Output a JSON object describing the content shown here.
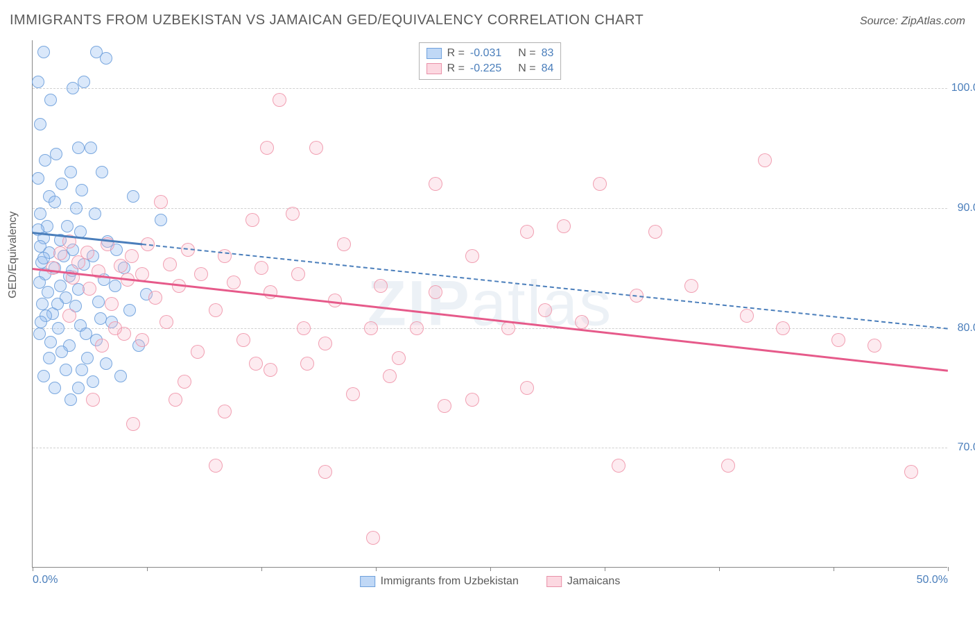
{
  "title": "IMMIGRANTS FROM UZBEKISTAN VS JAMAICAN GED/EQUIVALENCY CORRELATION CHART",
  "source": "Source: ZipAtlas.com",
  "ylabel": "GED/Equivalency",
  "watermark": "ZIPatlas",
  "chart": {
    "type": "scatter",
    "xlim": [
      0,
      50
    ],
    "ylim": [
      60,
      104
    ],
    "xtick_positions": [
      0,
      6.25,
      12.5,
      18.75,
      25,
      31.25,
      37.5,
      43.75,
      50
    ],
    "xtick_labels_shown": {
      "0": "0.0%",
      "50": "50.0%"
    },
    "ytick_positions": [
      70,
      80,
      90,
      100
    ],
    "ytick_labels": {
      "70": "70.0%",
      "80": "80.0%",
      "90": "90.0%",
      "100": "100.0%"
    },
    "grid_color": "#d0d0d0",
    "background_color": "#ffffff",
    "axis_color": "#888888",
    "tick_label_color": "#4a7ebb",
    "series": [
      {
        "name": "Immigrants from Uzbekistan",
        "color_fill": "rgba(150,190,240,0.35)",
        "color_stroke": "#6ea0dc",
        "marker_size": 18,
        "R": "-0.031",
        "N": "83",
        "trend": {
          "x1": 0,
          "y1": 88.0,
          "x2": 50,
          "y2": 80.0,
          "style": "solid_then_dashed",
          "split_x": 6.0,
          "color": "#4a7ebb",
          "width": 2.5
        },
        "points": [
          [
            0.3,
            100.5
          ],
          [
            0.6,
            103
          ],
          [
            3.5,
            103
          ],
          [
            2.2,
            100
          ],
          [
            2.8,
            100.5
          ],
          [
            4.0,
            102.5
          ],
          [
            1.0,
            99
          ],
          [
            0.4,
            97
          ],
          [
            2.5,
            95
          ],
          [
            3.2,
            95
          ],
          [
            1.3,
            94.5
          ],
          [
            0.7,
            94
          ],
          [
            2.1,
            93
          ],
          [
            3.8,
            93
          ],
          [
            0.3,
            92.5
          ],
          [
            1.6,
            92
          ],
          [
            2.7,
            91.5
          ],
          [
            0.9,
            91
          ],
          [
            5.5,
            91
          ],
          [
            1.2,
            90.5
          ],
          [
            2.4,
            90
          ],
          [
            0.4,
            89.5
          ],
          [
            3.4,
            89.5
          ],
          [
            7.0,
            89
          ],
          [
            0.8,
            88.5
          ],
          [
            1.9,
            88.5
          ],
          [
            0.3,
            88.2
          ],
          [
            2.6,
            88
          ],
          [
            0.6,
            87.5
          ],
          [
            1.5,
            87.3
          ],
          [
            4.1,
            87.2
          ],
          [
            0.4,
            86.8
          ],
          [
            2.2,
            86.5
          ],
          [
            0.9,
            86.3
          ],
          [
            1.7,
            86
          ],
          [
            3.3,
            86
          ],
          [
            0.5,
            85.5
          ],
          [
            2.8,
            85.3
          ],
          [
            1.2,
            85
          ],
          [
            5.0,
            85
          ],
          [
            0.7,
            84.5
          ],
          [
            2.0,
            84.3
          ],
          [
            3.9,
            84
          ],
          [
            0.36,
            83.8
          ],
          [
            1.5,
            83.5
          ],
          [
            4.5,
            83.5
          ],
          [
            2.5,
            83.2
          ],
          [
            0.85,
            83
          ],
          [
            6.2,
            82.8
          ],
          [
            1.8,
            82.5
          ],
          [
            3.6,
            82.2
          ],
          [
            0.53,
            82
          ],
          [
            2.35,
            81.8
          ],
          [
            5.3,
            81.5
          ],
          [
            1.1,
            81.2
          ],
          [
            0.71,
            81
          ],
          [
            4.3,
            80.5
          ],
          [
            2.6,
            80.2
          ],
          [
            1.4,
            80
          ],
          [
            0.38,
            79.5
          ],
          [
            3.5,
            79
          ],
          [
            2.0,
            78.5
          ],
          [
            5.8,
            78.5
          ],
          [
            1.6,
            78
          ],
          [
            0.9,
            77.5
          ],
          [
            4.0,
            77
          ],
          [
            2.7,
            76.5
          ],
          [
            3.3,
            75.5
          ],
          [
            1.2,
            75
          ],
          [
            2.1,
            74
          ],
          [
            0.6,
            76
          ],
          [
            1.8,
            76.5
          ],
          [
            3.0,
            77.5
          ],
          [
            2.5,
            75
          ],
          [
            4.8,
            76
          ],
          [
            1.0,
            78.8
          ],
          [
            0.45,
            80.5
          ],
          [
            2.9,
            79.5
          ],
          [
            3.7,
            80.8
          ],
          [
            1.35,
            82
          ],
          [
            2.15,
            84.8
          ],
          [
            0.62,
            85.8
          ],
          [
            4.6,
            86.5
          ]
        ]
      },
      {
        "name": "Jamaicans",
        "color_fill": "rgba(250,190,205,0.30)",
        "color_stroke": "#e890a8",
        "marker_size": 20,
        "R": "-0.225",
        "N": "84",
        "trend": {
          "x1": 0,
          "y1": 85.0,
          "x2": 50,
          "y2": 76.5,
          "style": "solid",
          "color": "#e65a8a",
          "width": 2.5
        },
        "points": [
          [
            13.5,
            99
          ],
          [
            12.8,
            95
          ],
          [
            15.5,
            95
          ],
          [
            40,
            94
          ],
          [
            22,
            92
          ],
          [
            31,
            92
          ],
          [
            7.0,
            90.5
          ],
          [
            12.0,
            89
          ],
          [
            14.2,
            89.5
          ],
          [
            27,
            88
          ],
          [
            34,
            88
          ],
          [
            29,
            88.5
          ],
          [
            2.0,
            87.2
          ],
          [
            4.1,
            87
          ],
          [
            6.3,
            87
          ],
          [
            8.5,
            86.5
          ],
          [
            3.0,
            86.3
          ],
          [
            1.5,
            86.2
          ],
          [
            5.4,
            86
          ],
          [
            10.5,
            86
          ],
          [
            17,
            87
          ],
          [
            24,
            86
          ],
          [
            2.5,
            85.5
          ],
          [
            7.5,
            85.3
          ],
          [
            4.8,
            85.2
          ],
          [
            12.5,
            85
          ],
          [
            1.1,
            85
          ],
          [
            3.6,
            84.7
          ],
          [
            6.0,
            84.5
          ],
          [
            9.2,
            84.5
          ],
          [
            14.5,
            84.5
          ],
          [
            2.2,
            84.2
          ],
          [
            5.2,
            84
          ],
          [
            11.0,
            83.8
          ],
          [
            19,
            83.5
          ],
          [
            8.0,
            83.5
          ],
          [
            3.1,
            83.3
          ],
          [
            36,
            83.5
          ],
          [
            13.0,
            83
          ],
          [
            22,
            83
          ],
          [
            6.7,
            82.5
          ],
          [
            16.5,
            82.3
          ],
          [
            4.3,
            82
          ],
          [
            10.0,
            81.5
          ],
          [
            28,
            81.5
          ],
          [
            39,
            81
          ],
          [
            33,
            82.7
          ],
          [
            2.0,
            81
          ],
          [
            7.3,
            80.5
          ],
          [
            14.8,
            80
          ],
          [
            18.5,
            80
          ],
          [
            21,
            80
          ],
          [
            26,
            80
          ],
          [
            5.0,
            79.5
          ],
          [
            11.5,
            79
          ],
          [
            16.0,
            78.7
          ],
          [
            9.0,
            78
          ],
          [
            20,
            77.5
          ],
          [
            15.0,
            77
          ],
          [
            13.0,
            76.5
          ],
          [
            19.5,
            76
          ],
          [
            27,
            75
          ],
          [
            7.8,
            74
          ],
          [
            30,
            80.5
          ],
          [
            24,
            74
          ],
          [
            22.5,
            73.5
          ],
          [
            4.5,
            80
          ],
          [
            6.0,
            79
          ],
          [
            12.2,
            77
          ],
          [
            8.3,
            75.5
          ],
          [
            3.8,
            78.5
          ],
          [
            17.5,
            74.5
          ],
          [
            10.5,
            73
          ],
          [
            5.5,
            72
          ],
          [
            10.0,
            68.5
          ],
          [
            16.0,
            68
          ],
          [
            48,
            68
          ],
          [
            38,
            68.5
          ],
          [
            32,
            68.5
          ],
          [
            41,
            80
          ],
          [
            44,
            79
          ],
          [
            46,
            78.5
          ],
          [
            18.6,
            62.5
          ],
          [
            3.3,
            74
          ]
        ]
      }
    ],
    "legend_top": {
      "border_color": "#b0b0b0",
      "rows": [
        {
          "swatch": "blue",
          "R_label": "R =",
          "R_val": "-0.031",
          "N_label": "N =",
          "N_val": "83"
        },
        {
          "swatch": "pink",
          "R_label": "R =",
          "R_val": "-0.225",
          "N_label": "N =",
          "N_val": "84"
        }
      ]
    },
    "legend_bottom": [
      {
        "swatch": "blue",
        "label": "Immigrants from Uzbekistan"
      },
      {
        "swatch": "pink",
        "label": "Jamaicans"
      }
    ]
  }
}
